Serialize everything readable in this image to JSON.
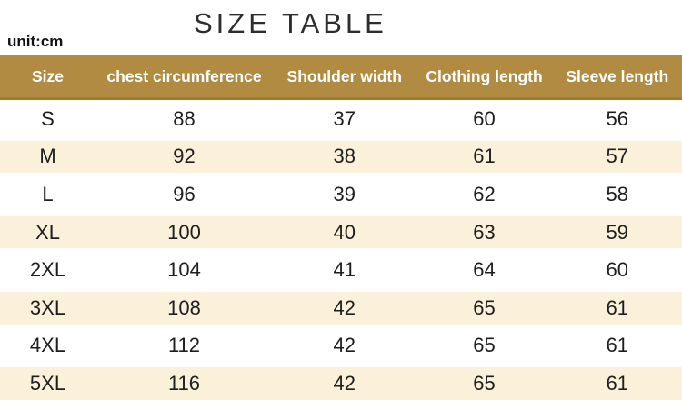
{
  "page": {
    "title": "SIZE TABLE",
    "unit_label": "unit:cm"
  },
  "chart_data": {
    "type": "table",
    "title": "SIZE TABLE",
    "unit_label": "unit:cm",
    "columns": [
      "Size",
      "chest circumference",
      "Shoulder width",
      "Clothing length",
      "Sleeve length"
    ],
    "rows": [
      {
        "size": "S",
        "values": [
          88,
          37,
          60,
          56
        ]
      },
      {
        "size": "M",
        "values": [
          92,
          38,
          61,
          57
        ]
      },
      {
        "size": "L",
        "values": [
          96,
          39,
          62,
          58
        ]
      },
      {
        "size": "XL",
        "values": [
          100,
          40,
          63,
          59
        ]
      },
      {
        "size": "2XL",
        "values": [
          104,
          41,
          64,
          60
        ]
      },
      {
        "size": "3XL",
        "values": [
          108,
          42,
          65,
          61
        ]
      },
      {
        "size": "4XL",
        "values": [
          112,
          42,
          65,
          61
        ]
      },
      {
        "size": "5XL",
        "values": [
          116,
          42,
          65,
          61
        ]
      }
    ]
  },
  "colors": {
    "header_bg": "#b18b41",
    "header_border": "#9c7b33",
    "header_text": "#ffffff",
    "alt_row_bg": "#fbf0da",
    "body_text": "#1e1e1e",
    "title_text": "#2d2d2d"
  }
}
